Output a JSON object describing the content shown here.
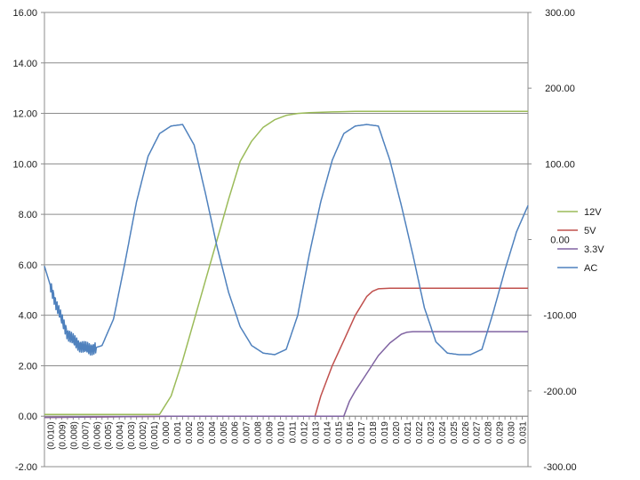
{
  "chart_data": {
    "type": "line",
    "title": "",
    "xlabel": "",
    "ylabel": "",
    "y_left": {
      "range": [
        -2,
        16
      ],
      "ticks": [
        -2,
        0,
        2,
        4,
        6,
        8,
        10,
        12,
        14,
        16
      ],
      "tick_labels": [
        "-2.00",
        "0.00",
        "2.00",
        "4.00",
        "6.00",
        "8.00",
        "10.00",
        "12.00",
        "14.00",
        "16.00"
      ]
    },
    "y_right": {
      "range": [
        -300,
        300
      ],
      "ticks": [
        -300,
        -200,
        -100,
        0,
        100,
        200,
        300
      ],
      "tick_labels": [
        "-300.00",
        "-200.00",
        "-100.00",
        "0.00",
        "100.00",
        "200.00",
        "300.00"
      ]
    },
    "x_range": [
      -0.01,
      0.032
    ],
    "x_tick_labels": [
      "(0.010)",
      "(0.009)",
      "(0.008)",
      "(0.007)",
      "(0.006)",
      "(0.005)",
      "(0.004)",
      "(0.003)",
      "(0.002)",
      "(0.001)",
      "0.000",
      "0.001",
      "0.002",
      "0.003",
      "0.004",
      "0.005",
      "0.006",
      "0.007",
      "0.008",
      "0.009",
      "0.010",
      "0.011",
      "0.012",
      "0.013",
      "0.014",
      "0.015",
      "0.016",
      "0.017",
      "0.018",
      "0.019",
      "0.020",
      "0.021",
      "0.022",
      "0.023",
      "0.024",
      "0.025",
      "0.026",
      "0.027",
      "0.028",
      "0.029",
      "0.030",
      "0.031"
    ],
    "grid": true,
    "legend_position": "right",
    "series": [
      {
        "name": "12V",
        "color": "#9bbb59",
        "axis": "left",
        "x": [
          -0.01,
          0.0,
          0.001,
          0.002,
          0.003,
          0.004,
          0.005,
          0.006,
          0.007,
          0.008,
          0.009,
          0.01,
          0.011,
          0.012,
          0.013,
          0.015,
          0.017,
          0.02,
          0.025,
          0.032
        ],
        "y": [
          0.07,
          0.07,
          0.8,
          2.2,
          3.8,
          5.4,
          7.0,
          8.6,
          10.1,
          10.9,
          11.45,
          11.75,
          11.92,
          12.0,
          12.03,
          12.06,
          12.08,
          12.08,
          12.08,
          12.08
        ]
      },
      {
        "name": "5V",
        "color": "#c0504d",
        "axis": "left",
        "x": [
          -0.01,
          0.001,
          0.0135,
          0.014,
          0.015,
          0.016,
          0.017,
          0.018,
          0.0185,
          0.019,
          0.02,
          0.025,
          0.032
        ],
        "y": [
          -0.05,
          0.0,
          0.0,
          0.8,
          2.0,
          3.0,
          4.0,
          4.75,
          4.95,
          5.05,
          5.07,
          5.07,
          5.07
        ]
      },
      {
        "name": "3.3V",
        "color": "#8064a2",
        "axis": "left",
        "x": [
          -0.01,
          0.001,
          0.016,
          0.0165,
          0.017,
          0.018,
          0.019,
          0.02,
          0.021,
          0.0215,
          0.022,
          0.025,
          0.032
        ],
        "y": [
          -0.05,
          0.0,
          0.0,
          0.6,
          1.0,
          1.7,
          2.4,
          2.9,
          3.25,
          3.33,
          3.35,
          3.35,
          3.35
        ]
      },
      {
        "name": "AC",
        "color": "#4f81bd",
        "axis": "right",
        "x": [
          -0.01,
          -0.009,
          -0.008,
          -0.007,
          -0.006,
          -0.005,
          -0.004,
          -0.003,
          -0.002,
          -0.001,
          0.0,
          0.001,
          0.002,
          0.003,
          0.004,
          0.005,
          0.006,
          0.007,
          0.008,
          0.009,
          0.01,
          0.011,
          0.012,
          0.013,
          0.014,
          0.015,
          0.016,
          0.017,
          0.018,
          0.019,
          0.02,
          0.021,
          0.022,
          0.023,
          0.024,
          0.025,
          0.026,
          0.027,
          0.028,
          0.029,
          0.03,
          0.031,
          0.032
        ],
        "y": [
          -35,
          -85,
          -125,
          -140,
          -145,
          -140,
          -105,
          -30,
          50,
          110,
          140,
          150,
          152,
          125,
          60,
          -10,
          -70,
          -115,
          -140,
          -150,
          -152,
          -145,
          -100,
          -20,
          50,
          105,
          140,
          150,
          152,
          150,
          105,
          45,
          -20,
          -90,
          -135,
          -150,
          -152,
          -152,
          -145,
          -95,
          -40,
          10,
          45
        ]
      }
    ]
  }
}
